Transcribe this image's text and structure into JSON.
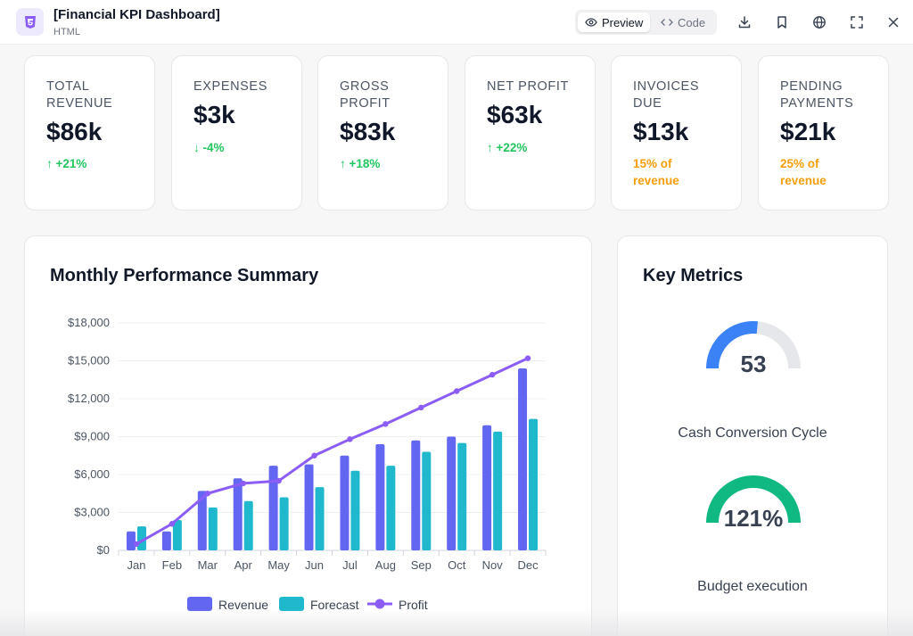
{
  "header": {
    "title": "[Financial KPI Dashboard]",
    "subtitle": "HTML",
    "preview_label": "Preview",
    "code_label": "Code",
    "icons": [
      "html5-icon",
      "eye-icon",
      "code-icon",
      "download-icon",
      "bookmark-icon",
      "globe-icon",
      "fullscreen-icon",
      "close-icon"
    ]
  },
  "kpis": [
    {
      "label": "TOTAL REVENUE",
      "value": "$86k",
      "change": "↑ +21%",
      "tone": "#22c55e"
    },
    {
      "label": "EXPENSES",
      "value": "$3k",
      "change": "↓ -4%",
      "tone": "#22c55e"
    },
    {
      "label": "GROSS PROFIT",
      "value": "$83k",
      "change": "↑ +18%",
      "tone": "#22c55e"
    },
    {
      "label": "NET PROFIT",
      "value": "$63k",
      "change": "↑ +22%",
      "tone": "#22c55e"
    },
    {
      "label": "INVOICES DUE",
      "value": "$13k",
      "change": "15% of revenue",
      "tone": "#f59e0b"
    },
    {
      "label": "PENDING PAYMENTS",
      "value": "$21k",
      "change": "25% of revenue",
      "tone": "#f59e0b"
    }
  ],
  "chart_panel": {
    "title": "Monthly Performance Summary"
  },
  "chart_data": {
    "type": "bar",
    "title": "Monthly Performance Summary",
    "categories": [
      "Jan",
      "Feb",
      "Mar",
      "Apr",
      "May",
      "Jun",
      "Jul",
      "Aug",
      "Sep",
      "Oct",
      "Nov",
      "Dec"
    ],
    "series": [
      {
        "name": "Revenue",
        "type": "bar",
        "color": "#6366f1",
        "values": [
          1500,
          1500,
          4700,
          5700,
          6700,
          6800,
          7500,
          8400,
          8700,
          9000,
          9900,
          14400
        ]
      },
      {
        "name": "Forecast",
        "type": "bar",
        "color": "#1fb8cd",
        "values": [
          1900,
          2400,
          3400,
          3900,
          4200,
          5000,
          6300,
          6700,
          7800,
          8500,
          9400,
          10400
        ]
      },
      {
        "name": "Profit",
        "type": "line",
        "color": "#8b5cf6",
        "values": [
          500,
          2100,
          4500,
          5300,
          5500,
          7500,
          8800,
          10000,
          11300,
          12600,
          13900,
          15200
        ]
      }
    ],
    "ylim": [
      0,
      18000
    ],
    "yticks": [
      "$0",
      "$3,000",
      "$6,000",
      "$9,000",
      "$12,000",
      "$15,000",
      "$18,000"
    ],
    "grid": true,
    "legend": "bottom"
  },
  "metrics_panel": {
    "title": "Key Metrics",
    "gauges": [
      {
        "value_label": "53",
        "percent": 0.53,
        "color": "#3b82f6",
        "label": "Cash Conversion Cycle"
      },
      {
        "value_label": "121%",
        "percent": 1.0,
        "color": "#10b981",
        "label": "Budget execution"
      }
    ],
    "track_color": "#e5e7eb"
  }
}
